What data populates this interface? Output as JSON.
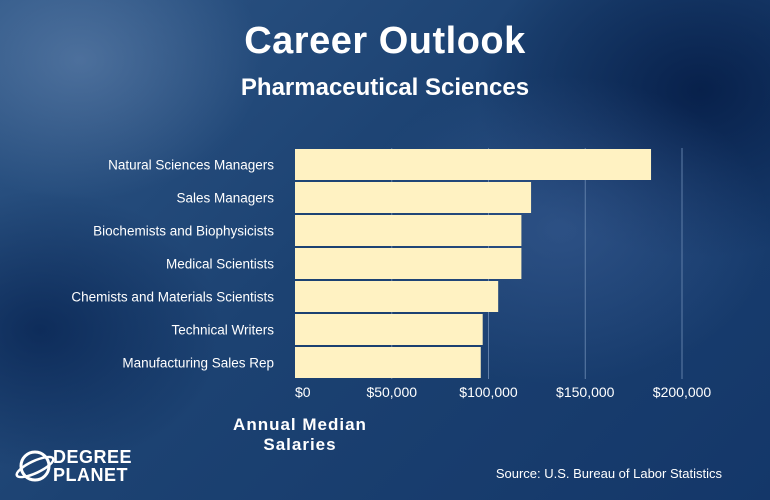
{
  "header": {
    "title": "Career Outlook",
    "subtitle": "Pharmaceutical Sciences"
  },
  "brand": {
    "line1": "DEGREE",
    "line2": "PLANET"
  },
  "source": "Source: U.S. Bureau of Labor Statistics",
  "colors": {
    "bar": "#fff2c2",
    "gridline": "#5f7ea8",
    "background": "#1c4272"
  },
  "chart_data": {
    "type": "bar",
    "orientation": "horizontal",
    "xlabel": "Annual Median Salaries",
    "categories": [
      "Natural Sciences Managers",
      "Sales Managers",
      "Biochemists and Biophysicists",
      "Medical Scientists",
      "Chemists and Materials Scientists",
      "Technical Writers",
      "Manufacturing Sales Rep"
    ],
    "values": [
      184000,
      122000,
      117000,
      117000,
      105000,
      97000,
      96000
    ],
    "xlim": [
      0,
      200000
    ],
    "xticks": [
      0,
      50000,
      100000,
      150000,
      200000
    ],
    "xtick_labels": [
      "$0",
      "$50,000",
      "$100,000",
      "$150,000",
      "$200,000"
    ],
    "grid": true
  }
}
